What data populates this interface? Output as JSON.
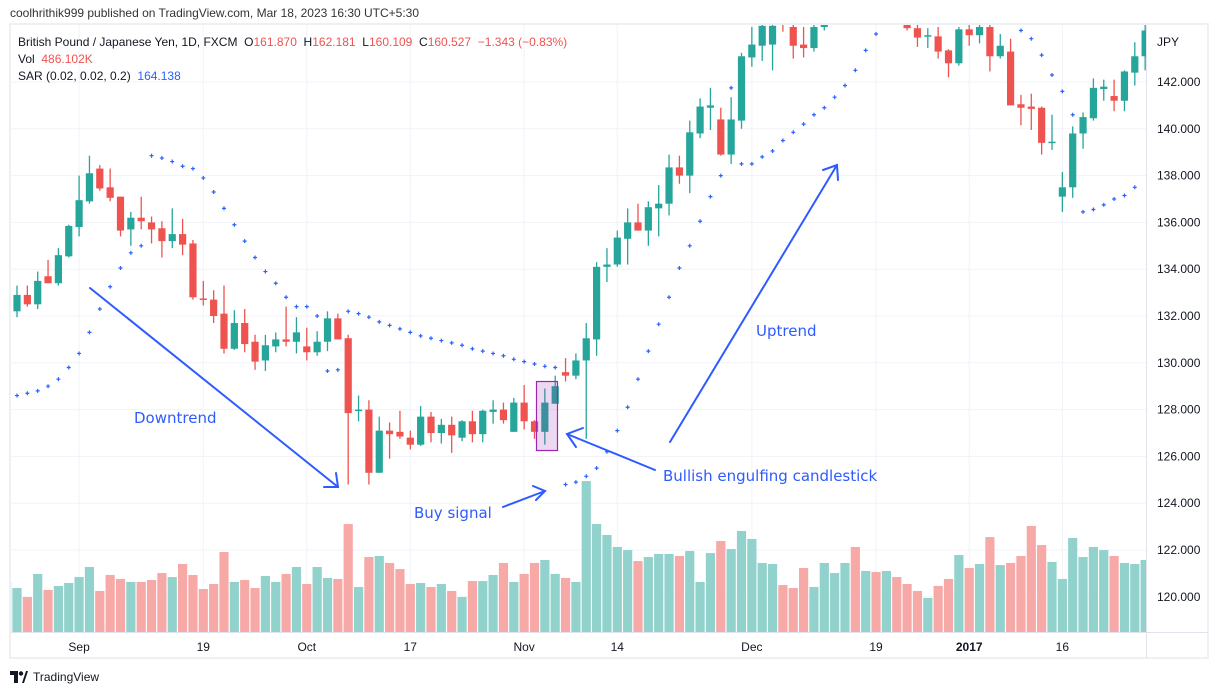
{
  "publish_line": "coolhrithik999 published on TradingView.com, Mar 18, 2023 16:30 UTC+5:30",
  "legend": {
    "symbol": "British Pound / Japanese Yen, 1D, FXCM",
    "o_label": "O",
    "o_value": "161.870",
    "h_label": "H",
    "h_value": "162.181",
    "l_label": "L",
    "l_value": "160.109",
    "c_label": "C",
    "c_value": "160.527",
    "change": "−1.343 (−0.83%)",
    "vol_label": "Vol",
    "vol_value": "486.102K",
    "sar_label": "SAR (0.02, 0.02, 0.2)",
    "sar_value": "164.138"
  },
  "colors": {
    "up": "#26a69a",
    "down": "#ef5350",
    "vol_up": "#92d2cc",
    "vol_down": "#f7a9a7",
    "sar": "#2962ff",
    "annotation": "#2e5bff",
    "highlight": "#9c27b0"
  },
  "annotations": {
    "downtrend": "Downtrend",
    "buy_signal": "Buy signal",
    "bullish_engulfing": "Bullish engulfing candlestick",
    "uptrend": "Uptrend"
  },
  "footer": {
    "brand": "TradingView",
    "logo_icon": "tradingview-logo-icon"
  },
  "chart_data": {
    "type": "candlestick",
    "currency_label": "JPY",
    "price_ticks": [
      "142.000",
      "140.000",
      "138.000",
      "136.000",
      "134.000",
      "132.000",
      "130.000",
      "128.000",
      "126.000",
      "124.000",
      "122.000",
      "120.000"
    ],
    "grid": true,
    "x_ticks": [
      {
        "label": "Sep",
        "index": 7,
        "bold": false
      },
      {
        "label": "19",
        "index": 19,
        "bold": false
      },
      {
        "label": "Oct",
        "index": 29,
        "bold": false
      },
      {
        "label": "17",
        "index": 39,
        "bold": false
      },
      {
        "label": "Nov",
        "index": 50,
        "bold": false
      },
      {
        "label": "14",
        "index": 59,
        "bold": false
      },
      {
        "label": "Dec",
        "index": 72,
        "bold": false
      },
      {
        "label": "19",
        "index": 84,
        "bold": false
      },
      {
        "label": "2017",
        "index": 93,
        "bold": true
      },
      {
        "label": "16",
        "index": 102,
        "bold": false
      }
    ],
    "ohlc_columns": [
      "open",
      "high",
      "low",
      "close"
    ],
    "candles": [
      [
        131.8,
        132.5,
        131.7,
        132.3
      ],
      [
        132.2,
        133.3,
        131.95,
        132.9
      ],
      [
        132.9,
        133.3,
        132.4,
        132.5
      ],
      [
        132.5,
        133.9,
        132.3,
        133.5
      ],
      [
        133.7,
        134.4,
        133.4,
        133.4
      ],
      [
        133.4,
        134.9,
        133.3,
        134.6
      ],
      [
        134.55,
        135.9,
        134.5,
        135.85
      ],
      [
        135.8,
        138.0,
        135.4,
        136.95
      ],
      [
        136.9,
        138.85,
        136.8,
        138.1
      ],
      [
        138.3,
        138.45,
        137.35,
        137.45
      ],
      [
        137.5,
        138.3,
        136.9,
        137.05
      ],
      [
        137.1,
        137.1,
        135.4,
        135.65
      ],
      [
        135.7,
        136.45,
        135.0,
        136.2
      ],
      [
        136.2,
        137.1,
        135.7,
        136.05
      ],
      [
        136.0,
        136.25,
        135.1,
        135.7
      ],
      [
        135.75,
        136.05,
        134.5,
        135.2
      ],
      [
        135.2,
        136.6,
        134.9,
        135.5
      ],
      [
        135.5,
        136.15,
        134.6,
        135.05
      ],
      [
        135.1,
        135.25,
        132.7,
        132.8
      ],
      [
        132.75,
        133.5,
        132.45,
        132.7
      ],
      [
        132.7,
        133.1,
        131.7,
        132.0
      ],
      [
        132.1,
        133.3,
        130.4,
        130.6
      ],
      [
        130.6,
        132.25,
        130.55,
        131.7
      ],
      [
        131.7,
        132.3,
        130.45,
        130.8
      ],
      [
        130.9,
        131.2,
        129.7,
        130.05
      ],
      [
        130.1,
        131.2,
        129.65,
        130.75
      ],
      [
        130.7,
        131.3,
        130.45,
        131.0
      ],
      [
        131.0,
        132.4,
        130.7,
        130.9
      ],
      [
        130.9,
        131.95,
        130.4,
        131.3
      ],
      [
        130.7,
        131.5,
        130.1,
        130.45
      ],
      [
        130.45,
        131.35,
        130.3,
        130.9
      ],
      [
        130.9,
        132.2,
        130.5,
        131.9
      ],
      [
        131.9,
        132.1,
        131.0,
        131.0
      ],
      [
        131.05,
        131.2,
        124.8,
        127.85
      ],
      [
        127.95,
        128.6,
        127.5,
        128.0
      ],
      [
        128.0,
        128.4,
        124.8,
        125.3
      ],
      [
        125.3,
        127.7,
        125.3,
        127.1
      ],
      [
        127.1,
        127.45,
        125.9,
        126.95
      ],
      [
        127.05,
        127.95,
        126.75,
        126.85
      ],
      [
        126.8,
        127.1,
        126.3,
        126.5
      ],
      [
        126.5,
        128.15,
        126.45,
        127.7
      ],
      [
        127.7,
        127.9,
        126.6,
        127.0
      ],
      [
        127.0,
        127.6,
        126.55,
        127.35
      ],
      [
        127.35,
        127.7,
        126.15,
        126.9
      ],
      [
        126.8,
        127.55,
        126.65,
        127.5
      ],
      [
        127.5,
        127.95,
        126.6,
        126.95
      ],
      [
        126.95,
        128.0,
        126.6,
        127.95
      ],
      [
        127.9,
        128.4,
        127.4,
        128.0
      ],
      [
        128.0,
        128.3,
        127.4,
        127.55
      ],
      [
        127.05,
        128.5,
        127.05,
        128.3
      ],
      [
        128.3,
        129.05,
        127.15,
        127.5
      ],
      [
        127.5,
        127.55,
        126.75,
        127.05
      ],
      [
        127.05,
        128.9,
        126.5,
        128.3
      ],
      [
        128.25,
        129.45,
        128.25,
        129.0
      ],
      [
        129.6,
        130.2,
        129.2,
        129.45
      ],
      [
        129.45,
        130.4,
        129.3,
        130.1
      ],
      [
        130.1,
        131.7,
        126.75,
        131.05
      ],
      [
        131.0,
        134.3,
        130.3,
        134.1
      ],
      [
        134.1,
        134.9,
        133.45,
        134.2
      ],
      [
        134.2,
        135.65,
        134.1,
        135.35
      ],
      [
        135.3,
        136.6,
        134.2,
        136.0
      ],
      [
        136.0,
        136.8,
        135.65,
        135.65
      ],
      [
        135.65,
        136.9,
        135.0,
        136.65
      ],
      [
        136.6,
        137.6,
        135.4,
        136.8
      ],
      [
        136.8,
        138.9,
        136.3,
        138.35
      ],
      [
        138.35,
        138.85,
        137.65,
        138.0
      ],
      [
        138.0,
        140.35,
        137.25,
        139.85
      ],
      [
        139.8,
        141.3,
        139.6,
        140.95
      ],
      [
        140.9,
        141.75,
        139.95,
        141.0
      ],
      [
        140.4,
        140.9,
        138.85,
        138.9
      ],
      [
        138.9,
        141.35,
        138.5,
        140.4
      ],
      [
        140.35,
        143.25,
        140.0,
        143.1
      ],
      [
        143.05,
        144.35,
        142.65,
        143.6
      ],
      [
        143.55,
        144.6,
        142.9,
        144.4
      ],
      [
        143.6,
        145.0,
        142.5,
        144.4
      ],
      [
        145.3,
        145.6,
        144.15,
        144.8
      ],
      [
        144.35,
        144.8,
        143.0,
        143.55
      ],
      [
        143.6,
        144.35,
        143.05,
        143.45
      ],
      [
        143.45,
        144.7,
        143.3,
        144.35
      ],
      [
        144.35,
        145.5,
        144.2,
        145.2
      ],
      [
        145.2,
        146.1,
        144.9,
        145.8
      ],
      [
        145.8,
        146.9,
        145.5,
        146.6
      ],
      [
        146.6,
        147.0,
        145.6,
        145.9
      ],
      [
        145.9,
        146.7,
        145.7,
        146.4
      ],
      [
        146.4,
        146.6,
        145.5,
        145.8
      ],
      [
        145.8,
        146.5,
        145.6,
        146.2
      ],
      [
        146.2,
        146.3,
        144.9,
        145.1
      ],
      [
        144.55,
        145.5,
        144.2,
        144.3
      ],
      [
        144.3,
        144.6,
        143.5,
        143.9
      ],
      [
        143.95,
        144.3,
        143.45,
        144.0
      ],
      [
        143.95,
        144.35,
        143.0,
        143.3
      ],
      [
        143.35,
        143.4,
        142.2,
        142.8
      ],
      [
        142.8,
        144.35,
        142.7,
        144.25
      ],
      [
        144.25,
        144.5,
        143.55,
        144.0
      ],
      [
        144.0,
        144.6,
        143.65,
        144.35
      ],
      [
        144.35,
        144.6,
        142.45,
        143.1
      ],
      [
        143.1,
        144.05,
        143.0,
        143.55
      ],
      [
        143.3,
        143.85,
        141.0,
        141.0
      ],
      [
        141.05,
        141.45,
        140.15,
        140.9
      ],
      [
        140.95,
        141.5,
        139.95,
        140.85
      ],
      [
        140.9,
        140.95,
        138.9,
        139.4
      ],
      [
        139.4,
        140.6,
        139.1,
        139.45
      ],
      [
        137.1,
        138.15,
        136.45,
        137.5
      ],
      [
        137.5,
        140.1,
        137.05,
        139.8
      ],
      [
        139.8,
        140.7,
        139.15,
        140.5
      ],
      [
        140.45,
        142.15,
        140.35,
        141.75
      ],
      [
        141.7,
        142.1,
        141.2,
        141.8
      ],
      [
        141.4,
        142.1,
        140.75,
        141.2
      ],
      [
        141.2,
        142.5,
        140.75,
        142.45
      ],
      [
        142.4,
        143.7,
        141.85,
        143.1
      ],
      [
        143.1,
        144.5,
        142.5,
        144.2
      ]
    ],
    "volume_k": [
      338,
      297,
      236,
      392,
      284,
      311,
      331,
      371,
      439,
      277,
      385,
      358,
      338,
      338,
      351,
      398,
      371,
      459,
      385,
      290,
      324,
      540,
      338,
      351,
      297,
      378,
      338,
      392,
      439,
      324,
      439,
      365,
      358,
      729,
      304,
      506,
      513,
      466,
      425,
      324,
      331,
      304,
      324,
      277,
      236,
      344,
      344,
      385,
      466,
      338,
      392,
      466,
      486,
      392,
      365,
      338,
      1019,
      729,
      655,
      574,
      553,
      479,
      506,
      527,
      527,
      513,
      547,
      338,
      533,
      614,
      560,
      682,
      628,
      466,
      459,
      317,
      297,
      432,
      304,
      466,
      398,
      466,
      574,
      412,
      405,
      412,
      371,
      324,
      277,
      230,
      311,
      358,
      520,
      432,
      459,
      641,
      452,
      466,
      513,
      716,
      587,
      473,
      358,
      635,
      506,
      574,
      553,
      513,
      466,
      459,
      486
    ],
    "sar": [
      null,
      128.6,
      128.7,
      128.8,
      129.0,
      129.3,
      129.8,
      130.4,
      131.3,
      132.3,
      133.25,
      134.05,
      134.7,
      135.0,
      138.85,
      138.75,
      138.6,
      138.4,
      138.3,
      137.9,
      137.3,
      136.6,
      135.9,
      135.2,
      134.5,
      133.9,
      133.4,
      132.8,
      132.4,
      132.4,
      132.0,
      129.65,
      129.7,
      132.2,
      132.1,
      131.95,
      131.75,
      131.6,
      131.45,
      131.3,
      131.15,
      131.05,
      130.95,
      130.85,
      130.75,
      130.6,
      130.5,
      130.4,
      130.3,
      130.15,
      130.05,
      129.95,
      129.85,
      129.8,
      124.8,
      124.9,
      125.15,
      125.5,
      126.2,
      127.1,
      128.1,
      129.3,
      130.5,
      131.65,
      132.8,
      134.05,
      135.0,
      136.05,
      137.1,
      138.0,
      141.75,
      138.5,
      138.5,
      138.8,
      139.05,
      139.5,
      139.85,
      140.2,
      140.6,
      140.9,
      141.35,
      141.85,
      142.5,
      143.35,
      144.05,
      null,
      null,
      null,
      null,
      null,
      null,
      null,
      null,
      null,
      null,
      null,
      null,
      null,
      144.2,
      143.85,
      143.15,
      142.3,
      141.6,
      140.6,
      136.45,
      136.55,
      136.75,
      137.0,
      137.15,
      137.5,
      null
    ],
    "highlighted_candles": [
      52
    ]
  }
}
